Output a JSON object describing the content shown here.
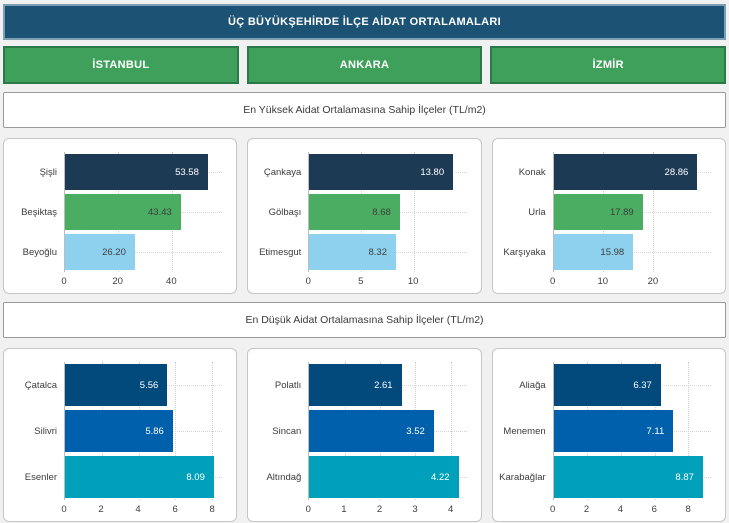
{
  "header": {
    "title": "ÜÇ BÜYÜKŞEHİRDE İLÇE AİDAT ORTALAMALARI"
  },
  "city_buttons": [
    {
      "label": "İSTANBUL"
    },
    {
      "label": "ANKARA"
    },
    {
      "label": "İZMİR"
    }
  ],
  "sections": [
    {
      "title": "En Yüksek Aidat Ortalamasına Sahip İlçeler (TL/m2)"
    },
    {
      "title": "En Düşük Aidat Ortalamasına Sahip İlçeler (TL/m2)"
    }
  ],
  "colors": {
    "header_bg": "#1c5274",
    "header_border": "#7d9fb4",
    "button_bg": "#3fa05c",
    "button_border": "#2d7848",
    "navy_bar": "#1c3a54",
    "green_bar": "#4bad61",
    "lightblue_bar": "#8ed1ef",
    "darkblue_bar": "#02497c",
    "mediumblue_bar": "#0060ab",
    "teal_bar": "#00a0ba"
  },
  "chart_data": [
    {
      "type": "bar",
      "orientation": "horizontal",
      "group": "highest",
      "city": "İstanbul",
      "categories": [
        "Şişli",
        "Beşiktaş",
        "Beyoğlu"
      ],
      "values": [
        53.58,
        43.43,
        26.2
      ],
      "value_labels": [
        "53.58",
        "43.43",
        "26.20"
      ],
      "bar_colors": [
        "#1c3a54",
        "#4bad61",
        "#8ed1ef"
      ],
      "value_text_colors": [
        "#ffffff",
        "#3d3d3d",
        "#3d3d3d"
      ],
      "ticks": [
        0,
        20,
        40
      ],
      "xmax": 59
    },
    {
      "type": "bar",
      "orientation": "horizontal",
      "group": "highest",
      "city": "Ankara",
      "categories": [
        "Çankaya",
        "Gölbaşı",
        "Etimesgut"
      ],
      "values": [
        13.8,
        8.68,
        8.32
      ],
      "value_labels": [
        "13.80",
        "8.68",
        "8.32"
      ],
      "bar_colors": [
        "#1c3a54",
        "#4bad61",
        "#8ed1ef"
      ],
      "value_text_colors": [
        "#ffffff",
        "#3d3d3d",
        "#3d3d3d"
      ],
      "ticks": [
        0,
        5,
        10
      ],
      "xmax": 15.1
    },
    {
      "type": "bar",
      "orientation": "horizontal",
      "group": "highest",
      "city": "İzmir",
      "categories": [
        "Konak",
        "Urla",
        "Karşıyaka"
      ],
      "values": [
        28.86,
        17.89,
        15.98
      ],
      "value_labels": [
        "28.86",
        "17.89",
        "15.98"
      ],
      "bar_colors": [
        "#1c3a54",
        "#4bad61",
        "#8ed1ef"
      ],
      "value_text_colors": [
        "#ffffff",
        "#3d3d3d",
        "#3d3d3d"
      ],
      "ticks": [
        0,
        10,
        20
      ],
      "xmax": 31.6
    },
    {
      "type": "bar",
      "orientation": "horizontal",
      "group": "lowest",
      "city": "İstanbul",
      "categories": [
        "Çatalca",
        "Silivri",
        "Esenler"
      ],
      "values": [
        5.56,
        5.86,
        8.09
      ],
      "value_labels": [
        "5.56",
        "5.86",
        "8.09"
      ],
      "bar_colors": [
        "#02497c",
        "#0060ab",
        "#00a0ba"
      ],
      "value_text_colors": [
        "#ffffff",
        "#ffffff",
        "#ffffff"
      ],
      "ticks": [
        0,
        2,
        4,
        6,
        8
      ],
      "xmax": 8.55
    },
    {
      "type": "bar",
      "orientation": "horizontal",
      "group": "lowest",
      "city": "Ankara",
      "categories": [
        "Polatlı",
        "Sincan",
        "Altındağ"
      ],
      "values": [
        2.61,
        3.52,
        4.22
      ],
      "value_labels": [
        "2.61",
        "3.52",
        "4.22"
      ],
      "bar_colors": [
        "#02497c",
        "#0060ab",
        "#00a0ba"
      ],
      "value_text_colors": [
        "#ffffff",
        "#ffffff",
        "#ffffff"
      ],
      "ticks": [
        0,
        1,
        2,
        3,
        4
      ],
      "xmax": 4.45
    },
    {
      "type": "bar",
      "orientation": "horizontal",
      "group": "lowest",
      "city": "İzmir",
      "categories": [
        "Aliağa",
        "Menemen",
        "Karabağlar"
      ],
      "values": [
        6.37,
        7.11,
        8.87
      ],
      "value_labels": [
        "6.37",
        "7.11",
        "8.87"
      ],
      "bar_colors": [
        "#02497c",
        "#0060ab",
        "#00a0ba"
      ],
      "value_text_colors": [
        "#ffffff",
        "#ffffff",
        "#ffffff"
      ],
      "ticks": [
        0,
        2,
        4,
        6,
        8
      ],
      "xmax": 9.35
    }
  ]
}
